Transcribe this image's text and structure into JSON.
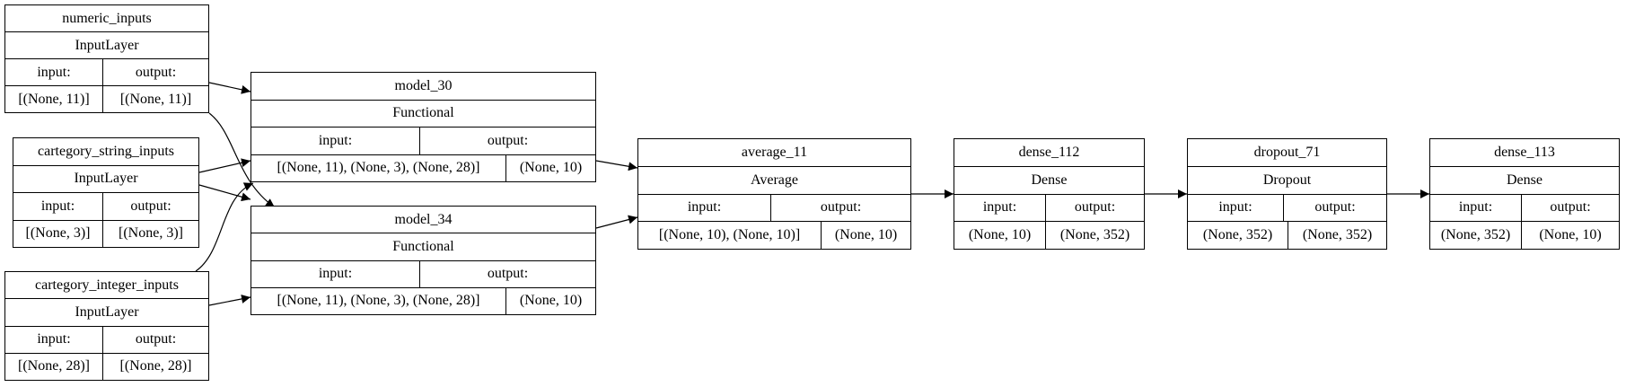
{
  "labels": {
    "input": "input:",
    "output": "output:"
  },
  "nodes": {
    "numeric_inputs": {
      "name": "numeric_inputs",
      "type": "InputLayer",
      "input": "[(None, 11)]",
      "output": "[(None, 11)]"
    },
    "cartegory_string_inputs": {
      "name": "cartegory_string_inputs",
      "type": "InputLayer",
      "input": "[(None, 3)]",
      "output": "[(None, 3)]"
    },
    "cartegory_integer_inputs": {
      "name": "cartegory_integer_inputs",
      "type": "InputLayer",
      "input": "[(None, 28)]",
      "output": "[(None, 28)]"
    },
    "model_30": {
      "name": "model_30",
      "type": "Functional",
      "input": "[(None, 11), (None, 3), (None, 28)]",
      "output": "(None, 10)"
    },
    "model_34": {
      "name": "model_34",
      "type": "Functional",
      "input": "[(None, 11), (None, 3), (None, 28)]",
      "output": "(None, 10)"
    },
    "average_11": {
      "name": "average_11",
      "type": "Average",
      "input": "[(None, 10), (None, 10)]",
      "output": "(None, 10)"
    },
    "dense_112": {
      "name": "dense_112",
      "type": "Dense",
      "input": "(None, 10)",
      "output": "(None, 352)"
    },
    "dropout_71": {
      "name": "dropout_71",
      "type": "Dropout",
      "input": "(None, 352)",
      "output": "(None, 352)"
    },
    "dense_113": {
      "name": "dense_113",
      "type": "Dense",
      "input": "(None, 352)",
      "output": "(None, 10)"
    }
  },
  "edges": [
    {
      "from": "numeric_inputs",
      "to": "model_30"
    },
    {
      "from": "numeric_inputs",
      "to": "model_34"
    },
    {
      "from": "cartegory_string_inputs",
      "to": "model_30"
    },
    {
      "from": "cartegory_string_inputs",
      "to": "model_34"
    },
    {
      "from": "cartegory_integer_inputs",
      "to": "model_30"
    },
    {
      "from": "cartegory_integer_inputs",
      "to": "model_34"
    },
    {
      "from": "model_30",
      "to": "average_11"
    },
    {
      "from": "model_34",
      "to": "average_11"
    },
    {
      "from": "average_11",
      "to": "dense_112"
    },
    {
      "from": "dense_112",
      "to": "dropout_71"
    },
    {
      "from": "dropout_71",
      "to": "dense_113"
    }
  ]
}
